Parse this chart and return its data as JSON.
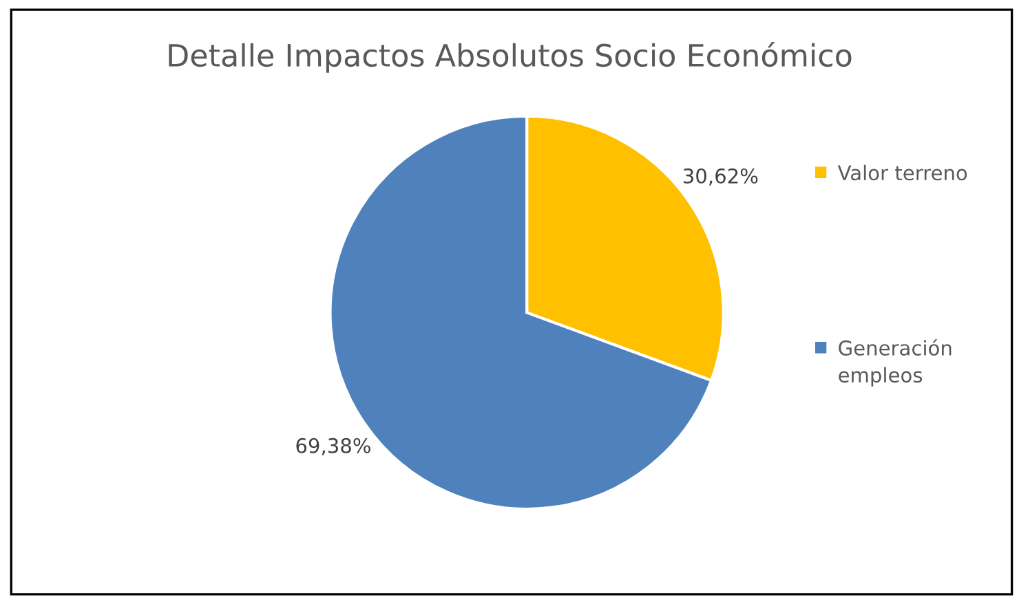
{
  "chart_data": {
    "type": "pie",
    "title": "Detalle Impactos Absolutos Socio Económico",
    "categories": [
      "Valor terreno",
      "Generación empleos"
    ],
    "values": [
      30.62,
      69.38
    ],
    "colors": [
      "#ffc000",
      "#4f81bd"
    ],
    "value_labels": [
      "30,62%",
      "69,38%"
    ],
    "legend": "right"
  }
}
